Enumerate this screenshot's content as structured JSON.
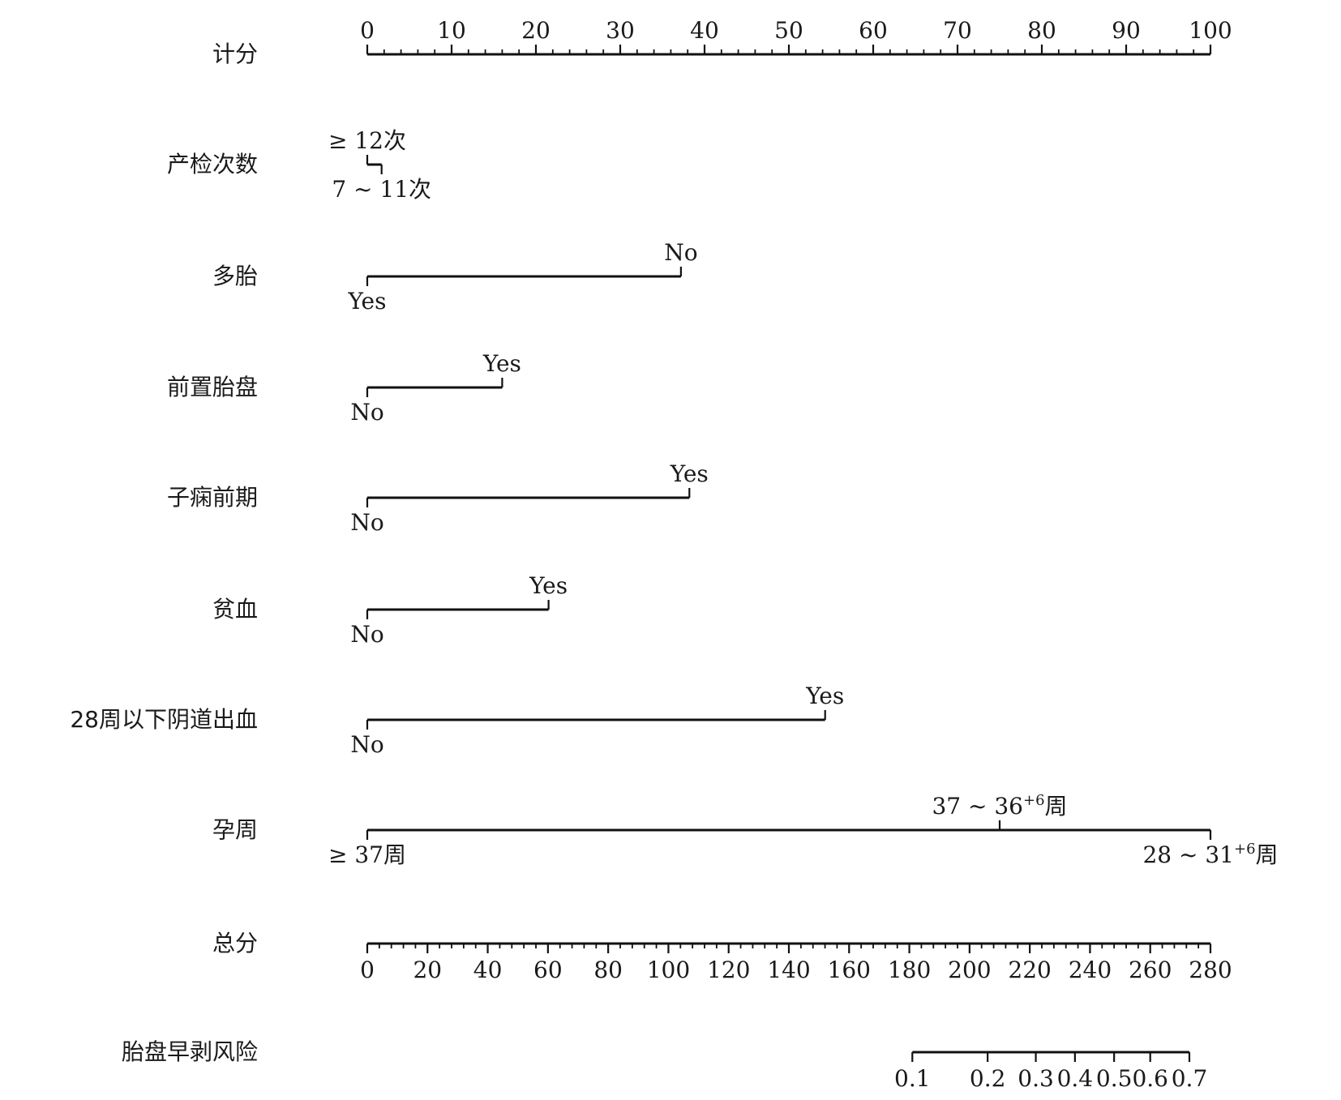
{
  "chart_data": {
    "type": "nomogram",
    "title": "",
    "rows": [
      {
        "kind": "axis",
        "label": "计分",
        "min": 0,
        "max": 100,
        "major_ticks": [
          0,
          10,
          20,
          30,
          40,
          50,
          60,
          70,
          80,
          90,
          100
        ],
        "tick_labels": [
          "0",
          "10",
          "20",
          "30",
          "40",
          "50",
          "60",
          "70",
          "80",
          "90",
          "100"
        ],
        "minor_step": 2,
        "label_side": "above"
      },
      {
        "kind": "variable",
        "label": "产检次数",
        "levels": [
          {
            "name": "≥ 12次",
            "points": 0,
            "side": "above"
          },
          {
            "name": "7 ~ 11次",
            "points": 1.7,
            "side": "below"
          }
        ]
      },
      {
        "kind": "variable",
        "label": "多胎",
        "levels": [
          {
            "name": "Yes",
            "points": 0,
            "side": "below"
          },
          {
            "name": "No",
            "points": 37.2,
            "side": "above"
          }
        ]
      },
      {
        "kind": "variable",
        "label": "前置胎盘",
        "levels": [
          {
            "name": "No",
            "points": 0,
            "side": "below"
          },
          {
            "name": "Yes",
            "points": 16.0,
            "side": "above"
          }
        ]
      },
      {
        "kind": "variable",
        "label": "子痫前期",
        "levels": [
          {
            "name": "No",
            "points": 0,
            "side": "below"
          },
          {
            "name": "Yes",
            "points": 38.2,
            "side": "above"
          }
        ]
      },
      {
        "kind": "variable",
        "label": "贫血",
        "levels": [
          {
            "name": "No",
            "points": 0,
            "side": "below"
          },
          {
            "name": "Yes",
            "points": 21.5,
            "side": "above"
          }
        ]
      },
      {
        "kind": "variable",
        "label": "28周以下阴道出血",
        "levels": [
          {
            "name": "No",
            "points": 0,
            "side": "below"
          },
          {
            "name": "Yes",
            "points": 54.3,
            "side": "above"
          }
        ]
      },
      {
        "kind": "variable",
        "label": "孕周",
        "levels": [
          {
            "name": "≥ 37周",
            "points": 0,
            "side": "below"
          },
          {
            "name": "37 ~ 36",
            "sup": "+6",
            "suffix": "周",
            "points": 75.0,
            "side": "above"
          },
          {
            "name": "28 ~ 31",
            "sup": "+6",
            "suffix": "周",
            "points": 100,
            "side": "below"
          }
        ]
      },
      {
        "kind": "axis",
        "label": "总分",
        "min": 0,
        "max": 280,
        "major_ticks": [
          0,
          20,
          40,
          60,
          80,
          100,
          120,
          140,
          160,
          180,
          200,
          220,
          240,
          260,
          280
        ],
        "tick_labels": [
          "0",
          "20",
          "40",
          "60",
          "80",
          "100",
          "120",
          "140",
          "160",
          "180",
          "200",
          "220",
          "240",
          "260",
          "280"
        ],
        "minor_step": 4,
        "label_side": "below"
      },
      {
        "kind": "risk",
        "label": "胎盘早剥风险",
        "ticks": [
          {
            "value": 0.1,
            "label": "0.1",
            "total_points": 181
          },
          {
            "value": 0.2,
            "label": "0.2",
            "total_points": 206
          },
          {
            "value": 0.3,
            "label": "0.3",
            "total_points": 222
          },
          {
            "value": 0.4,
            "label": "0.4",
            "total_points": 235
          },
          {
            "value": 0.5,
            "label": "0.5",
            "total_points": 248
          },
          {
            "value": 0.6,
            "label": "0.6",
            "total_points": 260
          },
          {
            "value": 0.7,
            "label": "0.7",
            "total_points": 273
          }
        ]
      }
    ]
  }
}
